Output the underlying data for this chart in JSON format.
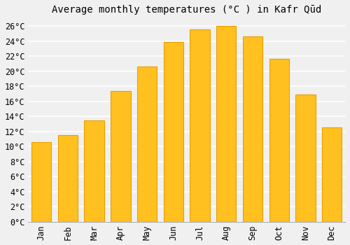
{
  "title": "Average monthly temperatures (°C ) in Kafr Qūd",
  "months": [
    "Jan",
    "Feb",
    "Mar",
    "Apr",
    "May",
    "Jun",
    "Jul",
    "Aug",
    "Sep",
    "Oct",
    "Nov",
    "Dec"
  ],
  "values": [
    10.6,
    11.5,
    13.5,
    17.4,
    20.6,
    23.9,
    25.5,
    26.0,
    24.6,
    21.6,
    16.9,
    12.5
  ],
  "bar_color": "#FFC020",
  "bar_edge_color": "#E8A000",
  "ylim": [
    0,
    27
  ],
  "ytick_max": 26,
  "ytick_step": 2,
  "background_color": "#f0f0f0",
  "grid_color": "#ffffff",
  "title_fontsize": 10,
  "tick_fontsize": 8.5
}
